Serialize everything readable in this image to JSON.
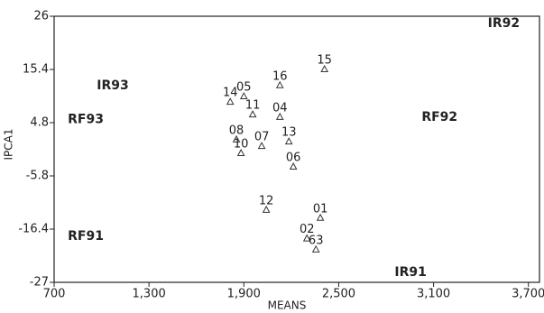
{
  "chart_data": {
    "type": "scatter",
    "x_label": "MEANS",
    "y_label": "IPCA1",
    "xlim": [
      700,
      3770
    ],
    "ylim": [
      -27,
      26
    ],
    "xticks": [
      700,
      {
        "value": 1300,
        "label": "1,300"
      },
      {
        "value": 1900,
        "label": "1,900"
      },
      {
        "value": 2500,
        "label": "2,500"
      },
      {
        "value": 3100,
        "label": "3,100"
      },
      {
        "value": 3700,
        "label": "3,700"
      }
    ],
    "yticks": [
      26,
      15.4,
      4.8,
      -5.8,
      -16.4,
      -27
    ],
    "genotypes": {
      "color": "#333333",
      "labels": [
        "15",
        "16",
        "14",
        "05",
        "11",
        "04",
        "13",
        "08",
        "07",
        "10",
        "06",
        "12",
        "01",
        "02",
        "63"
      ],
      "x": [
        2410,
        2128,
        1814,
        1900,
        1956,
        2128,
        2185,
        1853,
        2013,
        1882,
        2213,
        2042,
        2384,
        2299,
        2356
      ],
      "y": [
        15.4,
        12.2,
        8.9,
        10.0,
        6.4,
        5.9,
        1.0,
        1.4,
        0.1,
        -1.3,
        -4.0,
        -12.6,
        -14.2,
        -18.3,
        -20.5
      ]
    },
    "environments": {
      "color": "#111111",
      "labels": [
        "IR92",
        "IR93",
        "RF93",
        "RF92",
        "RF91",
        "IR91"
      ],
      "x": [
        3544,
        1071,
        900,
        3138,
        900,
        2955
      ],
      "y": [
        24.6,
        12.2,
        5.4,
        5.9,
        -17.8,
        -25.0
      ]
    }
  }
}
